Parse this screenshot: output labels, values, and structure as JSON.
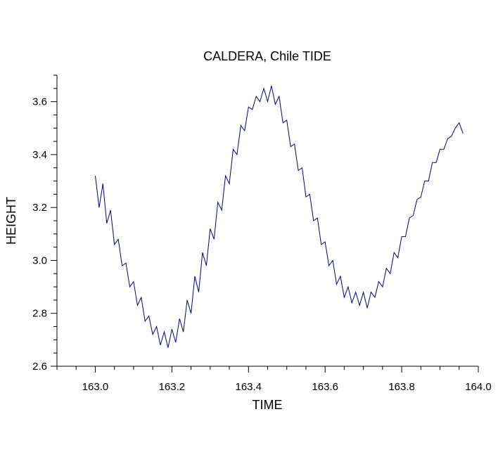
{
  "chart_data": {
    "type": "line",
    "title": "CALDERA, Chile TIDE",
    "xlabel": "TIME",
    "ylabel": "HEIGHT",
    "xlim": [
      162.9,
      164.0
    ],
    "ylim": [
      2.6,
      3.7
    ],
    "xticks": [
      {
        "value": 163.0,
        "label": "163.0"
      },
      {
        "value": 163.2,
        "label": "163.2"
      },
      {
        "value": 163.4,
        "label": "163.4"
      },
      {
        "value": 163.6,
        "label": "163.6"
      },
      {
        "value": 163.8,
        "label": "163.8"
      },
      {
        "value": 164.0,
        "label": "164.0"
      }
    ],
    "yticks": [
      {
        "value": 2.6,
        "label": "2.6"
      },
      {
        "value": 2.8,
        "label": "2.8"
      },
      {
        "value": 3.0,
        "label": "3.0"
      },
      {
        "value": 3.2,
        "label": "3.2"
      },
      {
        "value": 3.4,
        "label": "3.4"
      },
      {
        "value": 3.6,
        "label": "3.6"
      }
    ],
    "grid": false,
    "line_color": "#00008b",
    "series": [
      {
        "x": [
          163.0,
          163.01,
          163.02,
          163.03,
          163.04,
          163.05,
          163.06,
          163.07,
          163.08,
          163.09,
          163.1,
          163.11,
          163.12,
          163.13,
          163.14,
          163.15,
          163.16,
          163.17,
          163.18,
          163.19,
          163.2,
          163.21,
          163.22,
          163.23,
          163.24,
          163.25,
          163.26,
          163.27,
          163.28,
          163.29,
          163.3,
          163.31,
          163.32,
          163.33,
          163.34,
          163.35,
          163.36,
          163.37,
          163.38,
          163.39,
          163.4,
          163.41,
          163.42,
          163.43,
          163.44,
          163.45,
          163.46,
          163.47,
          163.48,
          163.49,
          163.5,
          163.51,
          163.52,
          163.53,
          163.54,
          163.55,
          163.56,
          163.57,
          163.58,
          163.59,
          163.6,
          163.61,
          163.62,
          163.63,
          163.64,
          163.65,
          163.66,
          163.67,
          163.68,
          163.69,
          163.7,
          163.71,
          163.72,
          163.73,
          163.74,
          163.75,
          163.76,
          163.77,
          163.78,
          163.79,
          163.8,
          163.81,
          163.82,
          163.83,
          163.84,
          163.85,
          163.86,
          163.87,
          163.88,
          163.89,
          163.9,
          163.91,
          163.92,
          163.93,
          163.94,
          163.95,
          163.96
        ],
        "y": [
          3.32,
          3.2,
          3.29,
          3.14,
          3.19,
          3.06,
          3.08,
          2.98,
          2.99,
          2.9,
          2.92,
          2.83,
          2.86,
          2.77,
          2.79,
          2.72,
          2.75,
          2.68,
          2.73,
          2.67,
          2.74,
          2.69,
          2.78,
          2.73,
          2.85,
          2.8,
          2.94,
          2.88,
          3.03,
          2.98,
          3.12,
          3.08,
          3.22,
          3.19,
          3.32,
          3.29,
          3.42,
          3.4,
          3.51,
          3.49,
          3.58,
          3.57,
          3.62,
          3.6,
          3.65,
          3.6,
          3.66,
          3.59,
          3.62,
          3.52,
          3.53,
          3.43,
          3.44,
          3.34,
          3.35,
          3.24,
          3.25,
          3.15,
          3.16,
          3.06,
          3.07,
          2.98,
          3.0,
          2.91,
          2.94,
          2.86,
          2.9,
          2.84,
          2.88,
          2.83,
          2.88,
          2.82,
          2.88,
          2.86,
          2.92,
          2.9,
          2.97,
          2.95,
          3.03,
          3.01,
          3.09,
          3.09,
          3.16,
          3.17,
          3.23,
          3.24,
          3.3,
          3.3,
          3.37,
          3.37,
          3.42,
          3.42,
          3.46,
          3.47,
          3.5,
          3.52,
          3.48
        ]
      }
    ]
  }
}
